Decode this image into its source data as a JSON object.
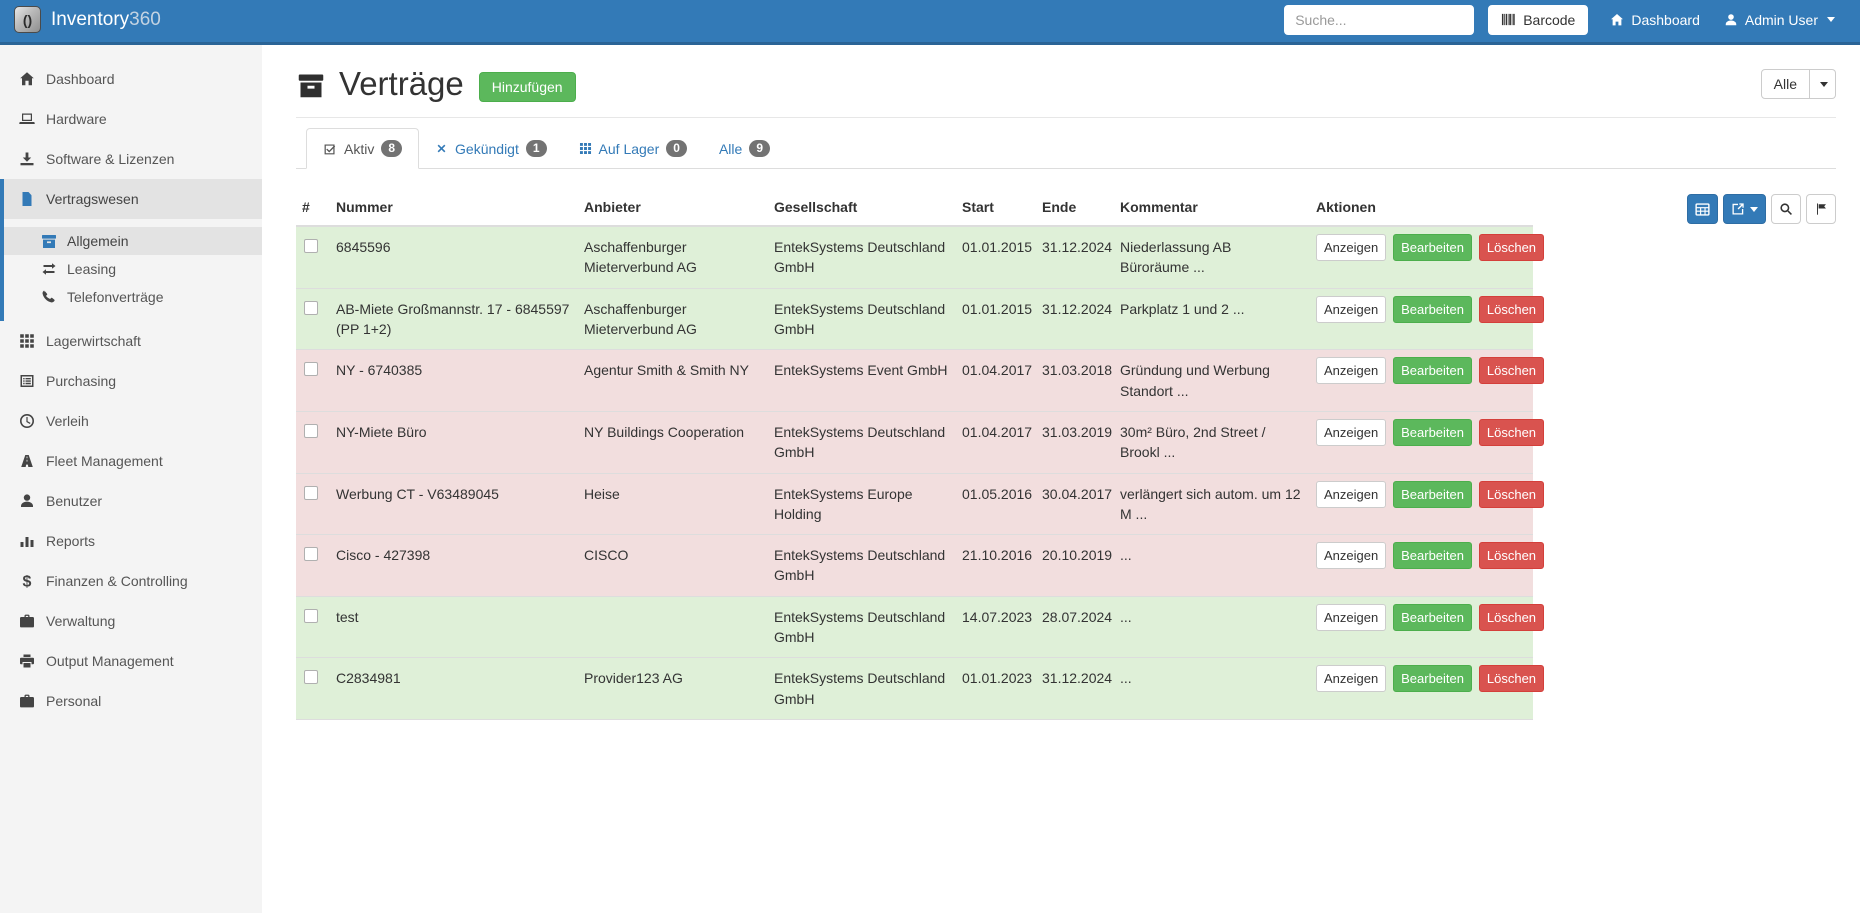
{
  "navbar": {
    "brand_name": "Inventory",
    "brand_suffix": "360",
    "logo_glyph": "()",
    "search_placeholder": "Suche...",
    "barcode_label": "Barcode",
    "dashboard_label": "Dashboard",
    "user_label": "Admin User"
  },
  "sidebar": {
    "items": [
      {
        "icon": "home",
        "label": "Dashboard"
      },
      {
        "icon": "laptop",
        "label": "Hardware"
      },
      {
        "icon": "download",
        "label": "Software & Lizenzen"
      },
      {
        "icon": "file",
        "label": "Vertragswesen",
        "active": true,
        "children": [
          {
            "icon": "archive",
            "label": "Allgemein",
            "active": true
          },
          {
            "icon": "exchange",
            "label": "Leasing"
          },
          {
            "icon": "phone",
            "label": "Telefonverträge"
          }
        ]
      },
      {
        "icon": "grid",
        "label": "Lagerwirtschaft"
      },
      {
        "icon": "list",
        "label": "Purchasing"
      },
      {
        "icon": "clock",
        "label": "Verleih"
      },
      {
        "icon": "road",
        "label": "Fleet Management"
      },
      {
        "icon": "user",
        "label": "Benutzer"
      },
      {
        "icon": "chart",
        "label": "Reports"
      },
      {
        "icon": "dollar",
        "label": "Finanzen & Controlling"
      },
      {
        "icon": "briefcase",
        "label": "Verwaltung"
      },
      {
        "icon": "print",
        "label": "Output Management"
      },
      {
        "icon": "briefcase",
        "label": "Personal"
      }
    ]
  },
  "page": {
    "title": "Verträge",
    "add_label": "Hinzufügen",
    "filter_label": "Alle",
    "tabs": [
      {
        "label": "Aktiv",
        "count": "8",
        "icon": "check-square",
        "active": true
      },
      {
        "label": "Gekündigt",
        "count": "1",
        "icon": "x"
      },
      {
        "label": "Auf Lager",
        "count": "0",
        "icon": "grid"
      },
      {
        "label": "Alle",
        "count": "9"
      }
    ]
  },
  "table": {
    "columns": [
      "#",
      "Nummer",
      "Anbieter",
      "Gesellschaft",
      "Start",
      "Ende",
      "Kommentar",
      "Aktionen"
    ],
    "actions": {
      "view": "Anzeigen",
      "edit": "Bearbeiten",
      "delete": "Löschen"
    },
    "rows": [
      {
        "status": "success",
        "nummer": "6845596",
        "anbieter": "Aschaffenburger Mieterverbund AG",
        "gesellschaft": "EntekSystems Deutschland GmbH",
        "start": "01.01.2015",
        "ende": "31.12.2024",
        "kommentar": "Niederlassung AB Büroräume ..."
      },
      {
        "status": "success",
        "nummer": "AB-Miete Großmannstr. 17 - 6845597 (PP 1+2)",
        "anbieter": "Aschaffenburger Mieterverbund AG",
        "gesellschaft": "EntekSystems Deutschland GmbH",
        "start": "01.01.2015",
        "ende": "31.12.2024",
        "kommentar": "Parkplatz 1 und 2 ..."
      },
      {
        "status": "danger",
        "nummer": "NY - 6740385",
        "anbieter": "Agentur Smith & Smith NY",
        "gesellschaft": "EntekSystems Event GmbH",
        "start": "01.04.2017",
        "ende": "31.03.2018",
        "kommentar": "Gründung und Werbung Standort ..."
      },
      {
        "status": "danger",
        "nummer": "NY-Miete Büro",
        "anbieter": "NY Buildings Cooperation",
        "gesellschaft": "EntekSystems Deutschland GmbH",
        "start": "01.04.2017",
        "ende": "31.03.2019",
        "kommentar": "30m² Büro, 2nd Street / Brookl ..."
      },
      {
        "status": "danger",
        "nummer": "Werbung CT - V63489045",
        "anbieter": "Heise",
        "gesellschaft": "EntekSystems Europe Holding",
        "start": "01.05.2016",
        "ende": "30.04.2017",
        "kommentar": "verlängert sich autom. um 12 M ..."
      },
      {
        "status": "danger",
        "nummer": "Cisco - 427398",
        "anbieter": "CISCO",
        "gesellschaft": "EntekSystems Deutschland GmbH",
        "start": "21.10.2016",
        "ende": "20.10.2019",
        "kommentar": "..."
      },
      {
        "status": "success",
        "nummer": "test",
        "anbieter": "",
        "gesellschaft": "EntekSystems Deutschland GmbH",
        "start": "14.07.2023",
        "ende": "28.07.2024",
        "kommentar": "..."
      },
      {
        "status": "success",
        "nummer": "C2834981",
        "anbieter": "Provider123 AG",
        "gesellschaft": "EntekSystems Deutschland GmbH",
        "start": "01.01.2023",
        "ende": "31.12.2024",
        "kommentar": "..."
      }
    ]
  },
  "colors": {
    "navbar_blue": "#337ab7",
    "navbar_border": "#2a6496",
    "success_row": "#dff0d8",
    "danger_row": "#f2dede",
    "success_button": "#5cb85c",
    "danger_button": "#d9534f",
    "primary_button": "#337ab7",
    "badge_gray": "#737373",
    "sidebar_bg": "#f4f4f4",
    "sidebar_active_bg": "#e3e3e3"
  }
}
